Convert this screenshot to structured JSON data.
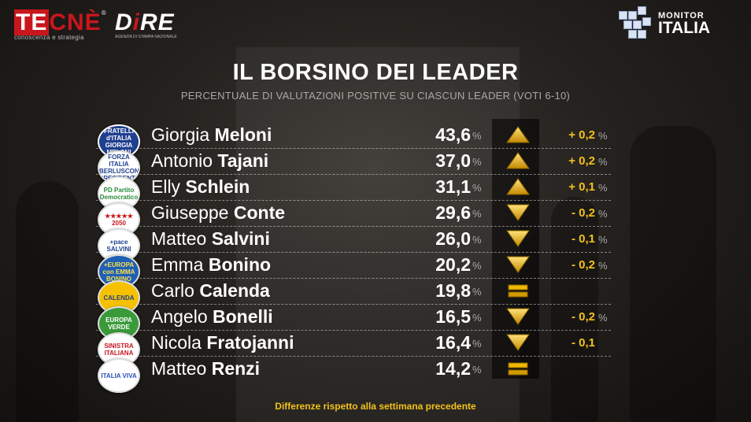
{
  "header": {
    "tecne": {
      "te": "TE",
      "cne": "CNÈ",
      "reg": "®",
      "tagline": "conoscenza e strategia"
    },
    "dire": {
      "d": "D",
      "i": "i",
      "re": "RE",
      "tagline": "AGENZIA DI STAMPA NAZIONALE"
    },
    "monitor": {
      "line1": "MONITOR",
      "line2": "ITALIA"
    }
  },
  "title": "IL BORSINO DEI LEADER",
  "subtitle": "PERCENTUALE DI VALUTAZIONI POSITIVE SU CIASCUN LEADER (VOTI 6-10)",
  "colors": {
    "accent": "#f3c21a",
    "arrow_gold": "#e0a800",
    "logo_red": "#c8161d"
  },
  "leaders": [
    {
      "first": "Giorgia",
      "last": "Meloni",
      "value": "43,6",
      "unit": "%",
      "trend": "up",
      "change": "+ 0,2",
      "change_unit": "%",
      "badge": "FRATELLI d'ITALIA GIORGIA MELONI"
    },
    {
      "first": "Antonio",
      "last": "Tajani",
      "value": "37,0",
      "unit": "%",
      "trend": "up",
      "change": "+ 0,2",
      "change_unit": "%",
      "badge": "FORZA ITALIA BERLUSCONI PRESIDENTE"
    },
    {
      "first": "Elly",
      "last": "Schlein",
      "value": "31,1",
      "unit": "%",
      "trend": "up",
      "change": "+ 0,1",
      "change_unit": "%",
      "badge": "PD Partito Democratico"
    },
    {
      "first": "Giuseppe",
      "last": "Conte",
      "value": "29,6",
      "unit": "%",
      "trend": "down",
      "change": "- 0,2",
      "change_unit": "%",
      "badge": "★★★★★ 2050"
    },
    {
      "first": "Matteo",
      "last": "Salvini",
      "value": "26,0",
      "unit": "%",
      "trend": "down",
      "change": "- 0,1",
      "change_unit": "%",
      "badge": "+pace SALVINI"
    },
    {
      "first": "Emma",
      "last": "Bonino",
      "value": "20,2",
      "unit": "%",
      "trend": "down",
      "change": "- 0,2",
      "change_unit": "%",
      "badge": "+EUROPA con EMMA BONINO"
    },
    {
      "first": "Carlo",
      "last": "Calenda",
      "value": "19,8",
      "unit": "%",
      "trend": "equal",
      "change": "",
      "change_unit": "",
      "badge": "CALENDA"
    },
    {
      "first": "Angelo",
      "last": "Bonelli",
      "value": "16,5",
      "unit": "%",
      "trend": "down",
      "change": "- 0,2",
      "change_unit": "%",
      "badge": "EUROPA VERDE"
    },
    {
      "first": "Nicola",
      "last": "Fratojanni",
      "value": "16,4",
      "unit": "%",
      "trend": "down",
      "change": "- 0,1",
      "change_unit": "",
      "badge": "SINISTRA ITALIANA"
    },
    {
      "first": "Matteo",
      "last": "Renzi",
      "value": "14,2",
      "unit": "%",
      "trend": "equal",
      "change": "",
      "change_unit": "",
      "badge": "ITALIA VIVA"
    }
  ],
  "footnote": "Differenze rispetto alla settimana precedente"
}
